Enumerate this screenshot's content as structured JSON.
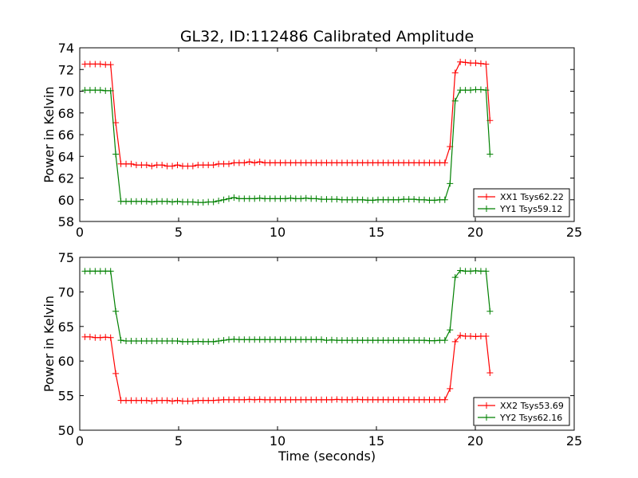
{
  "chart_data": [
    {
      "type": "line",
      "title": "GL32, ID:112486 Calibrated Amplitude",
      "xlabel": "",
      "ylabel": "Power in Kelvin",
      "xlim": [
        0,
        25
      ],
      "ylim": [
        58,
        74
      ],
      "xticks": [
        "0",
        "5",
        "10",
        "15",
        "20",
        "25"
      ],
      "yticks": [
        "58",
        "60",
        "62",
        "64",
        "66",
        "68",
        "70",
        "72",
        "74"
      ],
      "legend_position": "lower-right",
      "grid": false,
      "series": [
        {
          "name": "XX1 Tsys62.22",
          "color": "#ff0000",
          "x": [
            0.26,
            0.52,
            0.78,
            1.04,
            1.3,
            1.56,
            1.82,
            2.08,
            2.34,
            2.6,
            2.86,
            3.12,
            3.38,
            3.64,
            3.9,
            4.16,
            4.42,
            4.68,
            4.94,
            5.2,
            5.46,
            5.72,
            5.98,
            6.24,
            6.5,
            6.76,
            7.02,
            7.28,
            7.54,
            7.8,
            8.06,
            8.32,
            8.58,
            8.84,
            9.1,
            9.36,
            9.62,
            9.88,
            10.14,
            10.4,
            10.66,
            10.92,
            11.18,
            11.44,
            11.7,
            11.96,
            12.22,
            12.48,
            12.74,
            13.0,
            13.26,
            13.52,
            13.78,
            14.04,
            14.3,
            14.56,
            14.82,
            15.08,
            15.34,
            15.6,
            15.86,
            16.12,
            16.38,
            16.64,
            16.9,
            17.16,
            17.42,
            17.68,
            17.94,
            18.2,
            18.46,
            18.72,
            18.98,
            19.24,
            19.5,
            19.76,
            20.02,
            20.28,
            20.54,
            20.74
          ],
          "y": [
            72.5,
            72.5,
            72.5,
            72.5,
            72.45,
            72.45,
            67.1,
            63.3,
            63.3,
            63.3,
            63.2,
            63.2,
            63.2,
            63.1,
            63.2,
            63.2,
            63.1,
            63.1,
            63.2,
            63.1,
            63.1,
            63.1,
            63.2,
            63.2,
            63.2,
            63.2,
            63.3,
            63.3,
            63.3,
            63.4,
            63.4,
            63.4,
            63.5,
            63.4,
            63.5,
            63.4,
            63.4,
            63.4,
            63.4,
            63.4,
            63.4,
            63.4,
            63.4,
            63.4,
            63.4,
            63.4,
            63.4,
            63.4,
            63.4,
            63.4,
            63.4,
            63.4,
            63.4,
            63.4,
            63.4,
            63.4,
            63.4,
            63.4,
            63.4,
            63.4,
            63.4,
            63.4,
            63.4,
            63.4,
            63.4,
            63.4,
            63.4,
            63.4,
            63.4,
            63.4,
            63.4,
            64.9,
            71.7,
            72.7,
            72.65,
            72.6,
            72.6,
            72.55,
            72.5,
            67.3
          ]
        },
        {
          "name": "YY1 Tsys59.12",
          "color": "#008000",
          "x": [
            0.26,
            0.52,
            0.78,
            1.04,
            1.3,
            1.56,
            1.82,
            2.08,
            2.34,
            2.6,
            2.86,
            3.12,
            3.38,
            3.64,
            3.9,
            4.16,
            4.42,
            4.68,
            4.94,
            5.2,
            5.46,
            5.72,
            5.98,
            6.24,
            6.5,
            6.76,
            7.02,
            7.28,
            7.54,
            7.8,
            8.06,
            8.32,
            8.58,
            8.84,
            9.1,
            9.36,
            9.62,
            9.88,
            10.14,
            10.4,
            10.66,
            10.92,
            11.18,
            11.44,
            11.7,
            11.96,
            12.22,
            12.48,
            12.74,
            13.0,
            13.26,
            13.52,
            13.78,
            14.04,
            14.3,
            14.56,
            14.82,
            15.08,
            15.34,
            15.6,
            15.86,
            16.12,
            16.38,
            16.64,
            16.9,
            17.16,
            17.42,
            17.68,
            17.94,
            18.2,
            18.46,
            18.72,
            18.98,
            19.24,
            19.5,
            19.76,
            20.02,
            20.28,
            20.54,
            20.74
          ],
          "y": [
            70.1,
            70.1,
            70.1,
            70.1,
            70.05,
            70.05,
            64.2,
            59.85,
            59.85,
            59.85,
            59.85,
            59.85,
            59.85,
            59.8,
            59.85,
            59.85,
            59.85,
            59.8,
            59.85,
            59.8,
            59.8,
            59.8,
            59.75,
            59.75,
            59.8,
            59.8,
            59.9,
            60.0,
            60.1,
            60.2,
            60.1,
            60.1,
            60.1,
            60.1,
            60.15,
            60.1,
            60.1,
            60.1,
            60.1,
            60.1,
            60.15,
            60.1,
            60.1,
            60.15,
            60.1,
            60.1,
            60.05,
            60.05,
            60.05,
            60.05,
            60.0,
            60.0,
            60.0,
            60.0,
            60.0,
            59.95,
            59.95,
            60.0,
            60.0,
            60.0,
            60.0,
            60.0,
            60.05,
            60.05,
            60.05,
            60.0,
            60.0,
            59.95,
            59.95,
            60.0,
            60.0,
            61.5,
            69.1,
            70.1,
            70.1,
            70.1,
            70.15,
            70.15,
            70.1,
            64.2
          ]
        }
      ]
    },
    {
      "type": "line",
      "title": "",
      "xlabel": "Time (seconds)",
      "ylabel": "Power in Kelvin",
      "xlim": [
        0,
        25
      ],
      "ylim": [
        50,
        75
      ],
      "xticks": [
        "0",
        "5",
        "10",
        "15",
        "20",
        "25"
      ],
      "yticks": [
        "50",
        "55",
        "60",
        "65",
        "70",
        "75"
      ],
      "legend_position": "lower-right",
      "grid": false,
      "series": [
        {
          "name": "XX2 Tsys53.69",
          "color": "#ff0000",
          "x": [
            0.26,
            0.52,
            0.78,
            1.04,
            1.3,
            1.56,
            1.82,
            2.08,
            2.34,
            2.6,
            2.86,
            3.12,
            3.38,
            3.64,
            3.9,
            4.16,
            4.42,
            4.68,
            4.94,
            5.2,
            5.46,
            5.72,
            5.98,
            6.24,
            6.5,
            6.76,
            7.02,
            7.28,
            7.54,
            7.8,
            8.06,
            8.32,
            8.58,
            8.84,
            9.1,
            9.36,
            9.62,
            9.88,
            10.14,
            10.4,
            10.66,
            10.92,
            11.18,
            11.44,
            11.7,
            11.96,
            12.22,
            12.48,
            12.74,
            13.0,
            13.26,
            13.52,
            13.78,
            14.04,
            14.3,
            14.56,
            14.82,
            15.08,
            15.34,
            15.6,
            15.86,
            16.12,
            16.38,
            16.64,
            16.9,
            17.16,
            17.42,
            17.68,
            17.94,
            18.2,
            18.46,
            18.72,
            18.98,
            19.24,
            19.5,
            19.76,
            20.02,
            20.28,
            20.54,
            20.74
          ],
          "y": [
            63.5,
            63.5,
            63.4,
            63.4,
            63.45,
            63.4,
            58.2,
            54.3,
            54.3,
            54.3,
            54.3,
            54.3,
            54.3,
            54.2,
            54.3,
            54.3,
            54.3,
            54.2,
            54.3,
            54.2,
            54.2,
            54.2,
            54.3,
            54.3,
            54.3,
            54.3,
            54.35,
            54.4,
            54.4,
            54.4,
            54.4,
            54.4,
            54.45,
            54.4,
            54.45,
            54.4,
            54.4,
            54.4,
            54.4,
            54.4,
            54.4,
            54.4,
            54.4,
            54.4,
            54.4,
            54.4,
            54.4,
            54.4,
            54.4,
            54.45,
            54.4,
            54.4,
            54.4,
            54.45,
            54.4,
            54.4,
            54.4,
            54.4,
            54.4,
            54.4,
            54.4,
            54.4,
            54.4,
            54.4,
            54.4,
            54.4,
            54.4,
            54.4,
            54.4,
            54.4,
            54.4,
            56.0,
            62.8,
            63.7,
            63.6,
            63.6,
            63.55,
            63.6,
            63.6,
            58.3
          ]
        },
        {
          "name": "YY2 Tsys62.16",
          "color": "#008000",
          "x": [
            0.26,
            0.52,
            0.78,
            1.04,
            1.3,
            1.56,
            1.82,
            2.08,
            2.34,
            2.6,
            2.86,
            3.12,
            3.38,
            3.64,
            3.9,
            4.16,
            4.42,
            4.68,
            4.94,
            5.2,
            5.46,
            5.72,
            5.98,
            6.24,
            6.5,
            6.76,
            7.02,
            7.28,
            7.54,
            7.8,
            8.06,
            8.32,
            8.58,
            8.84,
            9.1,
            9.36,
            9.62,
            9.88,
            10.14,
            10.4,
            10.66,
            10.92,
            11.18,
            11.44,
            11.7,
            11.96,
            12.22,
            12.48,
            12.74,
            13.0,
            13.26,
            13.52,
            13.78,
            14.04,
            14.3,
            14.56,
            14.82,
            15.08,
            15.34,
            15.6,
            15.86,
            16.12,
            16.38,
            16.64,
            16.9,
            17.16,
            17.42,
            17.68,
            17.94,
            18.2,
            18.46,
            18.72,
            18.98,
            19.24,
            19.5,
            19.76,
            20.02,
            20.28,
            20.54,
            20.74
          ],
          "y": [
            73.0,
            73.0,
            73.0,
            73.0,
            73.0,
            73.0,
            67.2,
            63.0,
            62.9,
            62.9,
            62.9,
            62.9,
            62.9,
            62.9,
            62.9,
            62.9,
            62.9,
            62.9,
            62.9,
            62.8,
            62.8,
            62.8,
            62.85,
            62.8,
            62.8,
            62.8,
            62.9,
            63.0,
            63.1,
            63.15,
            63.1,
            63.1,
            63.1,
            63.1,
            63.1,
            63.1,
            63.1,
            63.1,
            63.1,
            63.1,
            63.1,
            63.1,
            63.1,
            63.1,
            63.1,
            63.1,
            63.1,
            63.0,
            63.05,
            63.0,
            63.0,
            63.0,
            63.0,
            63.0,
            63.0,
            63.0,
            63.0,
            63.0,
            63.0,
            63.0,
            63.0,
            63.0,
            63.0,
            63.0,
            63.0,
            63.0,
            63.0,
            62.95,
            62.95,
            63.0,
            63.0,
            64.5,
            72.1,
            73.1,
            73.0,
            73.0,
            73.05,
            73.0,
            73.0,
            67.2
          ]
        }
      ]
    }
  ]
}
